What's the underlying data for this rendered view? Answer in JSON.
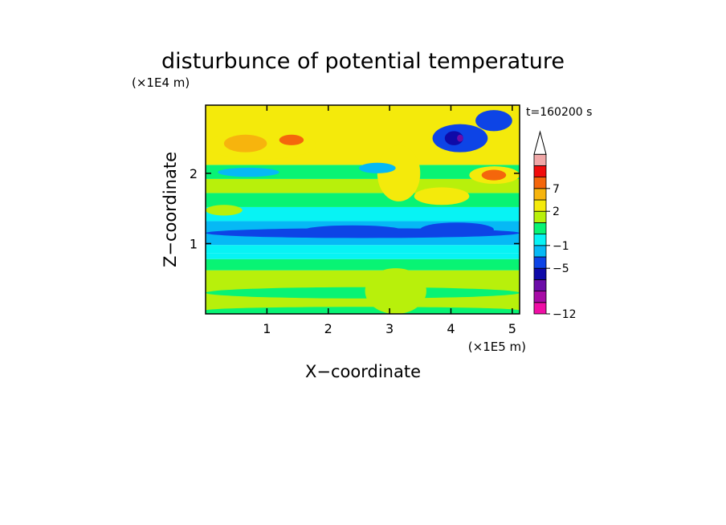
{
  "chart_data": {
    "type": "heatmap",
    "title": "disturbunce of potential temperature",
    "xlabel": "X−coordinate",
    "ylabel": "Z−coordinate",
    "x_unit": "(×1E5 m)",
    "y_unit": "(×1E4 m)",
    "time_label": "t=160200 s",
    "xlim": [
      0,
      5.12
    ],
    "ylim": [
      0,
      2.97
    ],
    "x_ticks": [
      1,
      2,
      3,
      4,
      5
    ],
    "x_tick_labels": [
      "1",
      "2",
      "3",
      "4",
      "5"
    ],
    "y_ticks": [
      1,
      2
    ],
    "y_tick_labels": [
      "1",
      "2"
    ],
    "colorbar": {
      "levels": [
        -12,
        -11,
        -9,
        -7,
        -5,
        -3,
        -1,
        0,
        1,
        2,
        4,
        7,
        8,
        9
      ],
      "colors": [
        "#f00ea5",
        "#a80ba6",
        "#6c0ca8",
        "#0e0aa8",
        "#0d44e6",
        "#06b9f5",
        "#07f3f4",
        "#08f374",
        "#b8f00b",
        "#f4ea0b",
        "#f7b40d",
        "#f4660c",
        "#f00c0c",
        "#f0a7a7"
      ],
      "extend_max_color": "#ffffff",
      "tick_labels": [
        {
          "label": "−12",
          "value": -12
        },
        {
          "label": "−5",
          "value": -5
        },
        {
          "label": "−1",
          "value": -1
        },
        {
          "label": "2",
          "value": 2
        },
        {
          "label": "7",
          "value": 7
        }
      ]
    },
    "bands": [
      {
        "z": [
          0.0,
          0.05
        ],
        "value": 0.5
      },
      {
        "z": [
          0.05,
          0.62
        ],
        "value": 1.5
      },
      {
        "z": [
          0.62,
          0.78
        ],
        "value": 0.5
      },
      {
        "z": [
          0.78,
          0.86
        ],
        "value": -0.5
      },
      {
        "z": [
          0.86,
          0.98
        ],
        "value": -0.5
      },
      {
        "z": [
          0.98,
          1.32
        ],
        "value": -1.5
      },
      {
        "z": [
          1.32,
          1.52
        ],
        "value": -0.5
      },
      {
        "z": [
          1.52,
          1.72
        ],
        "value": 0.5
      },
      {
        "z": [
          1.72,
          1.92
        ],
        "value": 1.5
      },
      {
        "z": [
          1.92,
          2.12
        ],
        "value": 0.5
      },
      {
        "z": [
          2.12,
          2.97
        ],
        "value": 2.5
      }
    ],
    "features": [
      {
        "x": [
          0.0,
          5.12
        ],
        "z": [
          1.08,
          1.22
        ],
        "value": -3.5
      },
      {
        "x": [
          1.6,
          3.2
        ],
        "z": [
          1.12,
          1.26
        ],
        "value": -3.5
      },
      {
        "x": [
          3.5,
          4.7
        ],
        "z": [
          1.1,
          1.3
        ],
        "value": -3.5
      },
      {
        "x": [
          0.0,
          1.8
        ],
        "z": [
          2.2,
          2.6
        ],
        "value": 3.5
      },
      {
        "x": [
          0.3,
          1.0
        ],
        "z": [
          2.3,
          2.55
        ],
        "value": 5.5
      },
      {
        "x": [
          1.2,
          1.6
        ],
        "z": [
          2.4,
          2.55
        ],
        "value": 7.5
      },
      {
        "x": [
          0.9,
          1.2
        ],
        "z": [
          2.5,
          2.75
        ],
        "value": 3.5
      },
      {
        "x": [
          4.3,
          5.12
        ],
        "z": [
          1.85,
          2.1
        ],
        "value": 3.5
      },
      {
        "x": [
          4.5,
          4.9
        ],
        "z": [
          1.9,
          2.05
        ],
        "value": 7.5
      },
      {
        "x": [
          3.7,
          4.6
        ],
        "z": [
          2.3,
          2.7
        ],
        "value": -3.5
      },
      {
        "x": [
          3.9,
          4.2
        ],
        "z": [
          2.4,
          2.6
        ],
        "value": -6.0
      },
      {
        "x": [
          4.1,
          4.2
        ],
        "z": [
          2.45,
          2.55
        ],
        "value": -8.0
      },
      {
        "x": [
          4.4,
          5.0
        ],
        "z": [
          2.6,
          2.9
        ],
        "value": -3.5
      },
      {
        "x": [
          2.8,
          3.5
        ],
        "z": [
          1.6,
          2.4
        ],
        "value": 3.5
      },
      {
        "x": [
          3.4,
          4.3
        ],
        "z": [
          1.55,
          1.8
        ],
        "value": 3.5
      },
      {
        "x": [
          0.2,
          1.2
        ],
        "z": [
          1.95,
          2.08
        ],
        "value": -1.5
      },
      {
        "x": [
          2.5,
          3.1
        ],
        "z": [
          2.0,
          2.15
        ],
        "value": -1.5
      },
      {
        "x": [
          0.0,
          5.12
        ],
        "z": [
          0.22,
          0.38
        ],
        "value": 0.5
      },
      {
        "x": [
          0.0,
          5.12
        ],
        "z": [
          0.0,
          0.1
        ],
        "value": 0.5
      },
      {
        "x": [
          1.1,
          2.2
        ],
        "z": [
          0.4,
          0.55
        ],
        "value": 1.5
      },
      {
        "x": [
          2.6,
          3.6
        ],
        "z": [
          0.0,
          0.65
        ],
        "value": 1.5
      },
      {
        "x": [
          0.0,
          0.6
        ],
        "z": [
          1.4,
          1.55
        ],
        "value": 1.5
      }
    ]
  }
}
